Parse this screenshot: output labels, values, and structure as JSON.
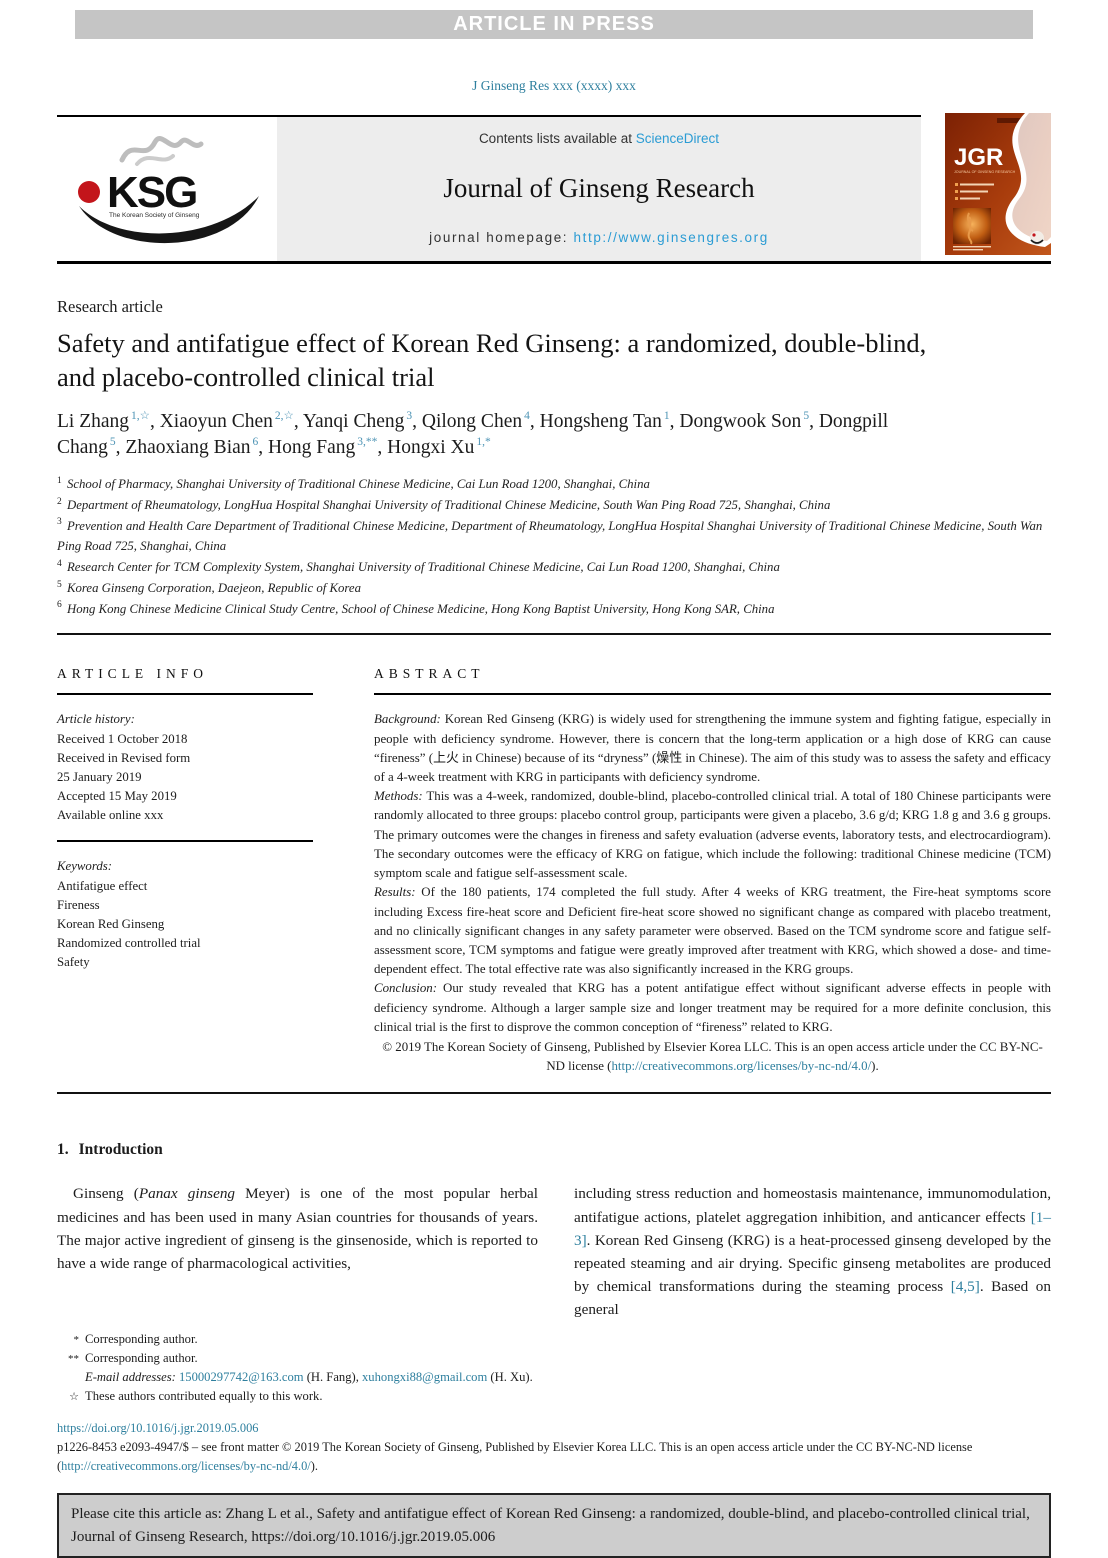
{
  "colors": {
    "link_blue": "#2b9cd4",
    "link_teal": "#2e7f9e",
    "banner_bg": "#c5c5c5",
    "header_box_bg": "#ededed",
    "cite_box_bg": "#cdcdcd",
    "logo_red": "#c3151b",
    "cover_red": "#8a2a06"
  },
  "banner": {
    "text": "ARTICLE IN PRESS"
  },
  "journal_ref": "J Ginseng Res xxx (xxxx) xxx",
  "header": {
    "contents_prefix": "Contents lists available at ",
    "contents_link": "ScienceDirect",
    "journal_title": "Journal of Ginseng Research",
    "homepage_prefix": "journal homepage: ",
    "homepage_link": "http://www.ginsengres.org",
    "logo": {
      "acronym": "KSG",
      "subtitle": "The Korean Society of Ginseng"
    },
    "cover": {
      "acronym": "JGR",
      "subtitle": "JOURNAL OF GINSENG RESEARCH"
    }
  },
  "article": {
    "type_label": "Research article",
    "title": "Safety and antifatigue effect of Korean Red Ginseng: a randomized, double-blind, and placebo-controlled clinical trial",
    "authors": [
      {
        "name": "Li Zhang",
        "sup": "1,☆"
      },
      {
        "name": "Xiaoyun Chen",
        "sup": "2,☆"
      },
      {
        "name": "Yanqi Cheng",
        "sup": "3"
      },
      {
        "name": "Qilong Chen",
        "sup": "4"
      },
      {
        "name": "Hongsheng Tan",
        "sup": "1"
      },
      {
        "name": "Dongwook Son",
        "sup": "5"
      },
      {
        "name": "Dongpill Chang",
        "sup": "5"
      },
      {
        "name": "Zhaoxiang Bian",
        "sup": "6"
      },
      {
        "name": "Hong Fang",
        "sup": "3,**"
      },
      {
        "name": "Hongxi Xu",
        "sup": "1,*"
      }
    ],
    "affiliations": [
      {
        "sup": "1",
        "text": "School of Pharmacy, Shanghai University of Traditional Chinese Medicine, Cai Lun Road 1200, Shanghai, China"
      },
      {
        "sup": "2",
        "text": "Department of Rheumatology, LongHua Hospital Shanghai University of Traditional Chinese Medicine, South Wan Ping Road 725, Shanghai, China"
      },
      {
        "sup": "3",
        "text": "Prevention and Health Care Department of Traditional Chinese Medicine, Department of Rheumatology, LongHua Hospital Shanghai University of Traditional Chinese Medicine, South Wan Ping Road 725, Shanghai, China"
      },
      {
        "sup": "4",
        "text": "Research Center for TCM Complexity System, Shanghai University of Traditional Chinese Medicine, Cai Lun Road 1200, Shanghai, China"
      },
      {
        "sup": "5",
        "text": "Korea Ginseng Corporation, Daejeon, Republic of Korea"
      },
      {
        "sup": "6",
        "text": "Hong Kong Chinese Medicine Clinical Study Centre, School of Chinese Medicine, Hong Kong Baptist University, Hong Kong SAR, China"
      }
    ]
  },
  "article_info": {
    "section_title": "ARTICLE INFO",
    "history_label": "Article history:",
    "history": [
      "Received 1 October 2018",
      "Received in Revised form",
      "25 January 2019",
      "Accepted 15 May 2019",
      "Available online xxx"
    ],
    "keywords_label": "Keywords:",
    "keywords": [
      "Antifatigue effect",
      "Fireness",
      "Korean Red Ginseng",
      "Randomized controlled trial",
      "Safety"
    ]
  },
  "abstract": {
    "section_title": "ABSTRACT",
    "paragraphs": [
      {
        "label": "Background:",
        "text": "Korean Red Ginseng (KRG) is widely used for strengthening the immune system and fighting fatigue, especially in people with deficiency syndrome. However, there is concern that the long-term application or a high dose of KRG can cause “fireness” (上火 in Chinese) because of its “dryness” (燥性 in Chinese). The aim of this study was to assess the safety and efficacy of a 4-week treatment with KRG in participants with deficiency syndrome."
      },
      {
        "label": "Methods:",
        "text": "This was a 4-week, randomized, double-blind, placebo-controlled clinical trial. A total of 180 Chinese participants were randomly allocated to three groups: placebo control group, participants were given a placebo, 3.6 g/d; KRG 1.8 g and 3.6 g groups. The primary outcomes were the changes in fireness and safety evaluation (adverse events, laboratory tests, and electrocardiogram). The secondary outcomes were the efficacy of KRG on fatigue, which include the following: traditional Chinese medicine (TCM) symptom scale and fatigue self-assessment scale."
      },
      {
        "label": "Results:",
        "text": "Of the 180 patients, 174 completed the full study. After 4 weeks of KRG treatment, the Fire-heat symptoms score including Excess fire-heat score and Deficient fire-heat score showed no significant change as compared with placebo treatment, and no clinically significant changes in any safety parameter were observed. Based on the TCM syndrome score and fatigue self-assessment score, TCM symptoms and fatigue were greatly improved after treatment with KRG, which showed a dose- and time-dependent effect. The total effective rate was also significantly increased in the KRG groups."
      },
      {
        "label": "Conclusion:",
        "text": "Our study revealed that KRG has a potent antifatigue effect without significant adverse effects in people with deficiency syndrome. Although a larger sample size and longer treatment may be required for a more definite conclusion, this clinical trial is the first to disprove the common conception of “fireness” related to KRG."
      }
    ],
    "copyright": [
      {
        "t": "© 2019 The Korean Society of Ginseng, Published by Elsevier Korea LLC. This is an open access article under the CC BY-NC-ND license (",
        "s": "p"
      },
      {
        "t": "http://creativecommons.org/licenses/by-nc-nd/4.0/",
        "s": "l"
      },
      {
        "t": ").",
        "s": "p"
      }
    ]
  },
  "introduction": {
    "heading_number": "1.",
    "heading_text": "Introduction",
    "left_column": [
      {
        "t": "Ginseng (",
        "s": "p"
      },
      {
        "t": "Panax ginseng",
        "s": "i"
      },
      {
        "t": " Meyer) is one of the most popular herbal medicines and has been used in many Asian countries for thousands of years. The major active ingredient of ginseng is the ginsenoside, which is reported to have a wide range of pharmacological activities,",
        "s": "p"
      }
    ],
    "right_column": [
      {
        "t": "including stress reduction and homeostasis maintenance, immunomodulation, antifatigue actions, platelet aggregation inhibition, and anticancer effects ",
        "s": "p"
      },
      {
        "t": "[1–3]",
        "s": "l"
      },
      {
        "t": ". Korean Red Ginseng (KRG) is a heat-processed ginseng developed by the repeated steaming and air drying. Specific ginseng metabolites are produced by chemical transformations during the steaming process ",
        "s": "p"
      },
      {
        "t": "[4,5]",
        "s": "l"
      },
      {
        "t": ". Based on general",
        "s": "p"
      }
    ]
  },
  "footnotes": [
    {
      "marker": "*",
      "segments": [
        {
          "t": "Corresponding author.",
          "s": "p"
        }
      ]
    },
    {
      "marker": "**",
      "segments": [
        {
          "t": "Corresponding author.",
          "s": "p"
        }
      ]
    },
    {
      "marker": "",
      "segments": [
        {
          "t": "E-mail addresses: ",
          "s": "i"
        },
        {
          "t": "15000297742@163.com",
          "s": "l"
        },
        {
          "t": " (H. Fang), ",
          "s": "p"
        },
        {
          "t": "xuhongxi88@gmail.com",
          "s": "l"
        },
        {
          "t": " (H. Xu).",
          "s": "p"
        }
      ]
    },
    {
      "marker": "☆",
      "segments": [
        {
          "t": "These authors contributed equally to this work.",
          "s": "p"
        }
      ]
    }
  ],
  "footer": {
    "doi": "https://doi.org/10.1016/j.jgr.2019.05.006",
    "front_matter": [
      {
        "t": "p1226-8453 e2093-4947/$ – see front matter © 2019 The Korean Society of Ginseng, Published by Elsevier Korea LLC. This is an open access article under the CC BY-NC-ND license (",
        "s": "p"
      },
      {
        "t": "http://creativecommons.org/licenses/by-nc-nd/4.0/",
        "s": "l"
      },
      {
        "t": ").",
        "s": "p"
      }
    ],
    "citation_notice": "Please cite this article as: Zhang L et al., Safety and antifatigue effect of Korean Red Ginseng: a randomized, double-blind, and placebo-controlled clinical trial, Journal of Ginseng Research, https://doi.org/10.1016/j.jgr.2019.05.006"
  }
}
